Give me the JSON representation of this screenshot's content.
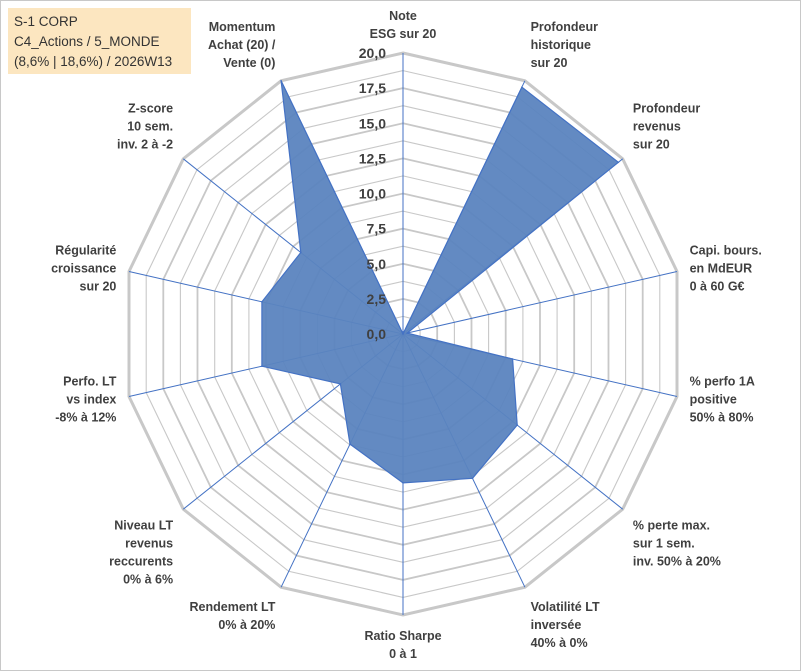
{
  "info_box": {
    "line1": "S-1 CORP",
    "line2": "C4_Actions / 5_MONDE",
    "line3": "(8,6% | 18,6%) / 2026W13"
  },
  "colors": {
    "fill": "#5b84bf",
    "stroke": "#4472c4",
    "grid": "#c8c8c8",
    "axis": "#4472c4",
    "info_bg": "#fce6c0"
  },
  "chart_data": {
    "type": "radar",
    "axis_min": 0,
    "axis_max": 20,
    "axis_step": 2.5,
    "tick_labels": [
      "0,0",
      "2,5",
      "5,0",
      "7,5",
      "10,0",
      "12,5",
      "15,0",
      "17,5",
      "20,0"
    ],
    "axes": [
      {
        "label": [
          "Note",
          "ESG sur 20"
        ],
        "value": 0
      },
      {
        "label": [
          "Profondeur",
          "historique",
          "sur 20"
        ],
        "value": 19.5
      },
      {
        "label": [
          "Profondeur",
          "revenus",
          "sur 20"
        ],
        "value": 19.6
      },
      {
        "label": [
          "Capi. bours.",
          "en MdEUR",
          "0 à 60 G€"
        ],
        "value": 0.3
      },
      {
        "label": [
          "% perfo 1A",
          "positive",
          "50% à 80%"
        ],
        "value": 8.0
      },
      {
        "label": [
          "% perte max.",
          "sur 1 sem.",
          "inv. 50% à 20%"
        ],
        "value": 10.4
      },
      {
        "label": [
          "Volatilité LT",
          "inversée",
          "40% à 0%"
        ],
        "value": 11.4
      },
      {
        "label": [
          "Ratio Sharpe",
          "0 à 1"
        ],
        "value": 10.6
      },
      {
        "label": [
          "Rendement LT",
          "0% à 20%"
        ],
        "value": 8.7
      },
      {
        "label": [
          "Niveau LT",
          "revenus",
          "reccurents",
          "0% à 6%"
        ],
        "value": 5.7
      },
      {
        "label": [
          "Perfo. LT",
          "vs index",
          "-8% à 12%"
        ],
        "value": 10.3
      },
      {
        "label": [
          "Régularité",
          "croissance",
          "sur 20"
        ],
        "value": 10.3
      },
      {
        "label": [
          "Z-score",
          "10 sem.",
          "inv. 2 à -2"
        ],
        "value": 9.3
      },
      {
        "label": [
          "Momentum",
          "Achat (20) /",
          "Vente (0)"
        ],
        "value": 20.0
      }
    ]
  }
}
